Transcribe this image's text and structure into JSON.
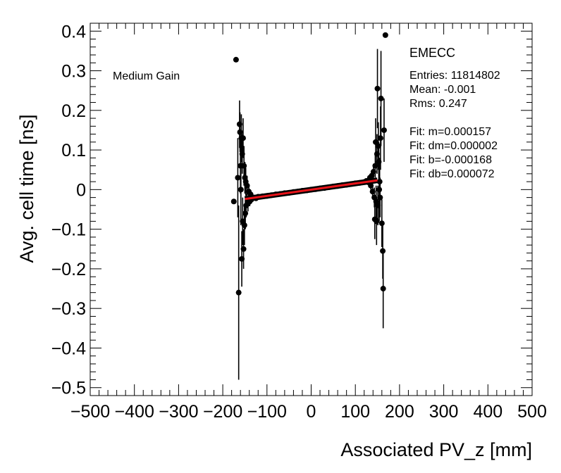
{
  "chart_data": {
    "type": "scatter",
    "xlabel": "Associated PV_z [mm]",
    "ylabel": "Avg. cell time [ns]",
    "xlim": [
      -500,
      500
    ],
    "ylim": [
      -0.52,
      0.42
    ],
    "x_ticks": [
      -500,
      -400,
      -300,
      -200,
      -100,
      0,
      100,
      200,
      300,
      400,
      500
    ],
    "y_ticks": [
      -0.5,
      -0.4,
      -0.3,
      -0.2,
      -0.1,
      0,
      0.1,
      0.2,
      0.3,
      0.4
    ],
    "x_tick_labels": [
      "−500",
      "−400",
      "−300",
      "−200",
      "−100",
      "0",
      "100",
      "200",
      "300",
      "400",
      "500"
    ],
    "y_tick_labels": [
      "−0.5",
      "−0.4",
      "−0.3",
      "−0.2",
      "−0.1",
      "0",
      "0.1",
      "0.2",
      "0.3",
      "0.4"
    ],
    "annotation_left": "Medium Gain",
    "stats": {
      "title": "EMECC",
      "entries": "Entries: 11814802",
      "mean": "Mean: -0.001",
      "rms": "Rms: 0.247",
      "fit_m": "Fit: m=0.000157",
      "fit_dm": "Fit: dm=0.000002",
      "fit_b": "Fit: b=-0.000168",
      "fit_db": "Fit: db=0.000072"
    },
    "fit": {
      "slope": 0.000157,
      "intercept": -0.000168,
      "x_range": [
        -150,
        150
      ],
      "color": "#e8141a"
    },
    "points": [
      {
        "x": -175,
        "y": -0.03,
        "err": 0.0
      },
      {
        "x": -170,
        "y": 0.328,
        "err": 0.0
      },
      {
        "x": -166,
        "y": 0.03,
        "err": 0.1
      },
      {
        "x": -164,
        "y": -0.26,
        "err": 0.22
      },
      {
        "x": -162,
        "y": 0.165,
        "err": 0.06
      },
      {
        "x": -161,
        "y": 0.145,
        "err": 0.05
      },
      {
        "x": -160,
        "y": 0.06,
        "err": 0.07
      },
      {
        "x": -159,
        "y": 0.0,
        "err": 0.09
      },
      {
        "x": -158,
        "y": 0.13,
        "err": 0.06
      },
      {
        "x": -157,
        "y": -0.175,
        "err": 0.07
      },
      {
        "x": -156,
        "y": 0.09,
        "err": 0.05
      },
      {
        "x": -155,
        "y": -0.08,
        "err": 0.06
      },
      {
        "x": -154,
        "y": 0.13,
        "err": 0.05
      },
      {
        "x": -153,
        "y": -0.15,
        "err": 0.05
      },
      {
        "x": -152,
        "y": 0.06,
        "err": 0.05
      },
      {
        "x": -151,
        "y": -0.09,
        "err": 0.05
      },
      {
        "x": -150,
        "y": 0.03,
        "err": 0.04
      },
      {
        "x": -149,
        "y": -0.06,
        "err": 0.04
      },
      {
        "x": -148,
        "y": 0.02,
        "err": 0.035
      },
      {
        "x": -147,
        "y": -0.04,
        "err": 0.03
      },
      {
        "x": -145,
        "y": 0.01,
        "err": 0.025
      },
      {
        "x": -143,
        "y": -0.035,
        "err": 0.02
      },
      {
        "x": -141,
        "y": -0.005,
        "err": 0.015
      },
      {
        "x": -139,
        "y": -0.03,
        "err": 0.012
      },
      {
        "x": -137,
        "y": -0.012,
        "err": 0.01
      },
      {
        "x": -135,
        "y": -0.025,
        "err": 0.008
      },
      {
        "x": -130,
        "y": -0.02,
        "err": 0.006
      },
      {
        "x": -125,
        "y": -0.022,
        "err": 0.005
      },
      {
        "x": -120,
        "y": -0.018,
        "err": 0.004
      },
      {
        "x": -110,
        "y": -0.017,
        "err": 0.003
      },
      {
        "x": -100,
        "y": -0.016,
        "err": 0.003
      },
      {
        "x": -90,
        "y": -0.014,
        "err": 0.002
      },
      {
        "x": -80,
        "y": -0.012,
        "err": 0.002
      },
      {
        "x": -70,
        "y": -0.011,
        "err": 0.002
      },
      {
        "x": -60,
        "y": -0.009,
        "err": 0.002
      },
      {
        "x": -50,
        "y": -0.008,
        "err": 0.002
      },
      {
        "x": -40,
        "y": -0.006,
        "err": 0.002
      },
      {
        "x": -30,
        "y": -0.005,
        "err": 0.002
      },
      {
        "x": -20,
        "y": -0.003,
        "err": 0.002
      },
      {
        "x": -10,
        "y": -0.002,
        "err": 0.002
      },
      {
        "x": 0,
        "y": 0.0,
        "err": 0.002
      },
      {
        "x": 10,
        "y": 0.001,
        "err": 0.002
      },
      {
        "x": 20,
        "y": 0.003,
        "err": 0.002
      },
      {
        "x": 30,
        "y": 0.004,
        "err": 0.002
      },
      {
        "x": 40,
        "y": 0.006,
        "err": 0.002
      },
      {
        "x": 50,
        "y": 0.008,
        "err": 0.002
      },
      {
        "x": 60,
        "y": 0.009,
        "err": 0.002
      },
      {
        "x": 70,
        "y": 0.011,
        "err": 0.002
      },
      {
        "x": 80,
        "y": 0.012,
        "err": 0.002
      },
      {
        "x": 90,
        "y": 0.014,
        "err": 0.003
      },
      {
        "x": 100,
        "y": 0.016,
        "err": 0.003
      },
      {
        "x": 110,
        "y": 0.017,
        "err": 0.003
      },
      {
        "x": 120,
        "y": 0.019,
        "err": 0.004
      },
      {
        "x": 125,
        "y": 0.022,
        "err": 0.005
      },
      {
        "x": 130,
        "y": 0.018,
        "err": 0.006
      },
      {
        "x": 133,
        "y": 0.03,
        "err": 0.008
      },
      {
        "x": 135,
        "y": 0.01,
        "err": 0.01
      },
      {
        "x": 137,
        "y": 0.035,
        "err": 0.012
      },
      {
        "x": 139,
        "y": -0.005,
        "err": 0.015
      },
      {
        "x": 141,
        "y": 0.045,
        "err": 0.02
      },
      {
        "x": 143,
        "y": -0.02,
        "err": 0.025
      },
      {
        "x": 144,
        "y": -0.075,
        "err": 0.05
      },
      {
        "x": 145,
        "y": 0.06,
        "err": 0.03
      },
      {
        "x": 146,
        "y": 0.12,
        "err": 0.06
      },
      {
        "x": 147,
        "y": -0.03,
        "err": 0.04
      },
      {
        "x": 148,
        "y": -0.08,
        "err": 0.06
      },
      {
        "x": 149,
        "y": 0.09,
        "err": 0.05
      },
      {
        "x": 150,
        "y": 0.255,
        "err": 0.1
      },
      {
        "x": 151,
        "y": -0.04,
        "err": 0.05
      },
      {
        "x": 152,
        "y": 0.11,
        "err": 0.06
      },
      {
        "x": 153,
        "y": 0.07,
        "err": 0.05
      },
      {
        "x": 154,
        "y": 0.0,
        "err": 0.08
      },
      {
        "x": 155,
        "y": 0.02,
        "err": 0.06
      },
      {
        "x": 156,
        "y": -0.02,
        "err": 0.05
      },
      {
        "x": 157,
        "y": 0.13,
        "err": 0.08
      },
      {
        "x": 158,
        "y": 0.23,
        "err": 0.12
      },
      {
        "x": 160,
        "y": -0.085,
        "err": 0.06
      },
      {
        "x": 162,
        "y": -0.155,
        "err": 0.07
      },
      {
        "x": 163,
        "y": -0.25,
        "err": 0.1
      },
      {
        "x": 165,
        "y": 0.15,
        "err": 0.08
      },
      {
        "x": 168,
        "y": 0.39,
        "err": 0.0
      }
    ]
  }
}
